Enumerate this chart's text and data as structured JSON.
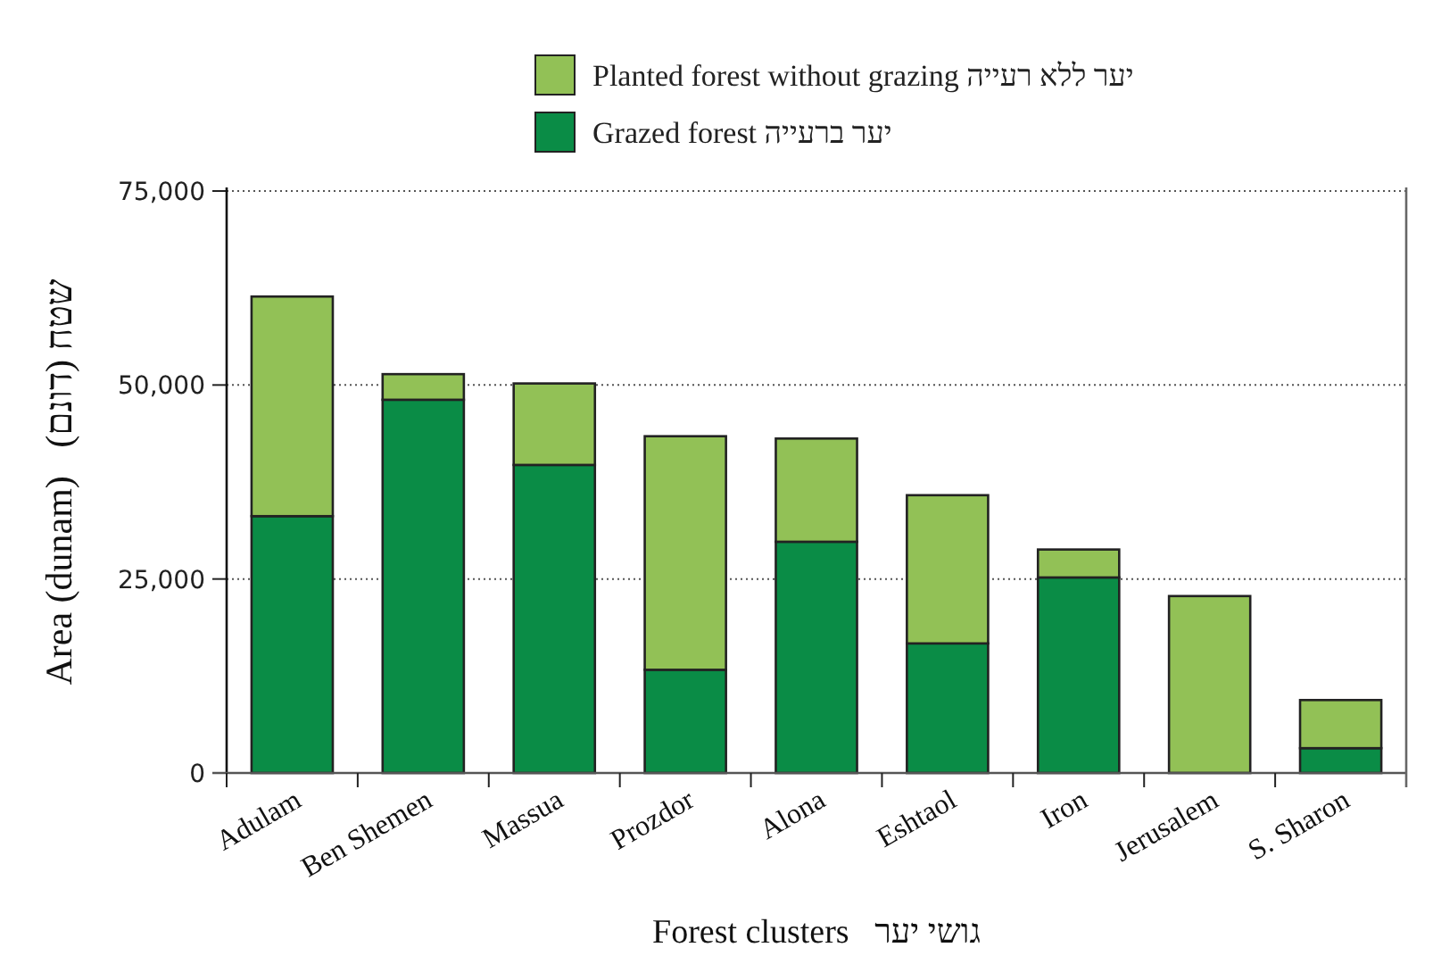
{
  "chart_data": {
    "type": "bar",
    "stacked": true,
    "xlabel": "Forest clusters   גושי יער",
    "ylabel": "Area (dunam)   שטח (דונם)",
    "categories": [
      "Adulam",
      "Ben Shemen",
      "Massua",
      "Prozdor",
      "Alona",
      "Eshtaol",
      "Iron",
      "Jerusalem",
      "S. Sharon"
    ],
    "series": [
      {
        "name": "Grazed forest יער ברעייה",
        "color": "#0a8c46",
        "values": [
          33100,
          48100,
          39700,
          13300,
          29800,
          16700,
          25200,
          0,
          3200
        ]
      },
      {
        "name": "Planted forest without grazing יער ללא רעייה",
        "color": "#92c156",
        "values": [
          28300,
          3300,
          10500,
          30100,
          13300,
          19100,
          3600,
          22800,
          6200
        ]
      }
    ],
    "ylim": [
      0,
      75000
    ],
    "yticks": [
      {
        "value": 0,
        "label": "0"
      },
      {
        "value": 25000,
        "label": "25,000"
      },
      {
        "value": 50000,
        "label": "50,000"
      },
      {
        "value": 75000,
        "label": "75,000"
      }
    ],
    "grid": "y",
    "legend": "top"
  }
}
